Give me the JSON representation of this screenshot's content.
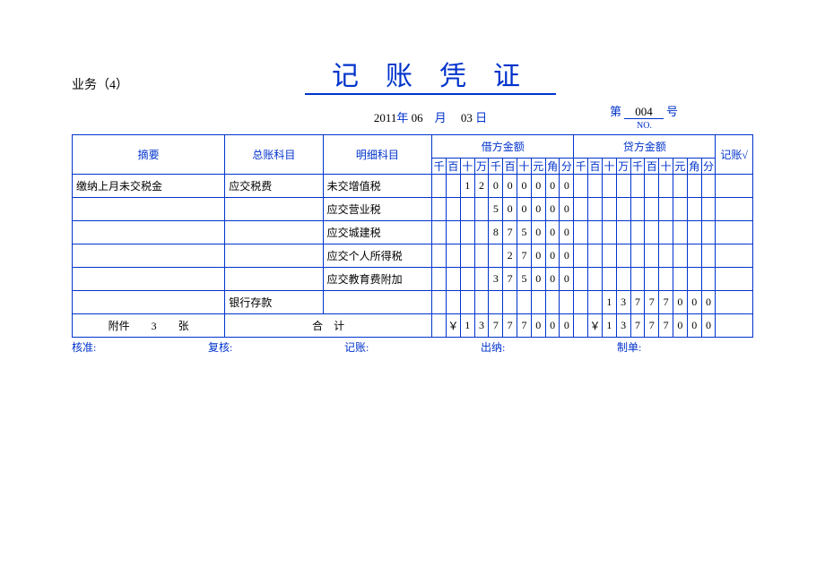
{
  "header": {
    "business_label": "业务（4）",
    "title": "记账凭证",
    "year": "2011",
    "year_suffix": "年",
    "month": "06",
    "month_suffix": "月",
    "day": "03",
    "day_suffix": "日",
    "no_prefix": "第",
    "no_value": "004",
    "no_suffix": "号",
    "no_sub": "NO."
  },
  "colors": {
    "primary": "#0033cc",
    "text": "#000000",
    "background": "#ffffff"
  },
  "columns": {
    "summary": "摘要",
    "general_account": "总账科目",
    "detail_account": "明细科目",
    "debit": "借方金额",
    "credit": "贷方金额",
    "check": "记账√",
    "digit_labels": [
      "千",
      "百",
      "十",
      "万",
      "千",
      "百",
      "十",
      "元",
      "角",
      "分"
    ]
  },
  "rows": [
    {
      "summary": "缴纳上月未交税金",
      "general": "应交税费",
      "detail": "未交增值税",
      "debit": [
        "",
        "",
        "1",
        "2",
        "0",
        "0",
        "0",
        "0",
        "0",
        "0"
      ],
      "credit": [
        "",
        "",
        "",
        "",
        "",
        "",
        "",
        "",
        "",
        ""
      ]
    },
    {
      "summary": "",
      "general": "",
      "detail": "应交营业税",
      "debit": [
        "",
        "",
        "",
        "",
        "5",
        "0",
        "0",
        "0",
        "0",
        "0"
      ],
      "credit": [
        "",
        "",
        "",
        "",
        "",
        "",
        "",
        "",
        "",
        ""
      ]
    },
    {
      "summary": "",
      "general": "",
      "detail": "应交城建税",
      "debit": [
        "",
        "",
        "",
        "",
        "8",
        "7",
        "5",
        "0",
        "0",
        "0"
      ],
      "credit": [
        "",
        "",
        "",
        "",
        "",
        "",
        "",
        "",
        "",
        ""
      ]
    },
    {
      "summary": "",
      "general": "",
      "detail": "应交个人所得税",
      "debit": [
        "",
        "",
        "",
        "",
        "",
        "2",
        "7",
        "0",
        "0",
        "0"
      ],
      "credit": [
        "",
        "",
        "",
        "",
        "",
        "",
        "",
        "",
        "",
        ""
      ]
    },
    {
      "summary": "",
      "general": "",
      "detail": "应交教育费附加",
      "debit": [
        "",
        "",
        "",
        "",
        "3",
        "7",
        "5",
        "0",
        "0",
        "0"
      ],
      "credit": [
        "",
        "",
        "",
        "",
        "",
        "",
        "",
        "",
        "",
        ""
      ]
    },
    {
      "summary": "",
      "general": "银行存款",
      "detail": "",
      "debit": [
        "",
        "",
        "",
        "",
        "",
        "",
        "",
        "",
        "",
        ""
      ],
      "credit": [
        "",
        "",
        "1",
        "3",
        "7",
        "7",
        "7",
        "0",
        "0",
        "0"
      ]
    }
  ],
  "footer": {
    "attachment_prefix": "附件",
    "attachment_count": "3",
    "attachment_suffix": "张",
    "total_label": "合　计",
    "debit_total": [
      "",
      "￥",
      "1",
      "3",
      "7",
      "7",
      "7",
      "0",
      "0",
      "0"
    ],
    "credit_total": [
      "",
      "￥",
      "1",
      "3",
      "7",
      "7",
      "7",
      "0",
      "0",
      "0"
    ]
  },
  "signatures": {
    "approve": "核准:",
    "review": "复核:",
    "record": "记账:",
    "cashier": "出纳:",
    "prepare": "制单:"
  }
}
